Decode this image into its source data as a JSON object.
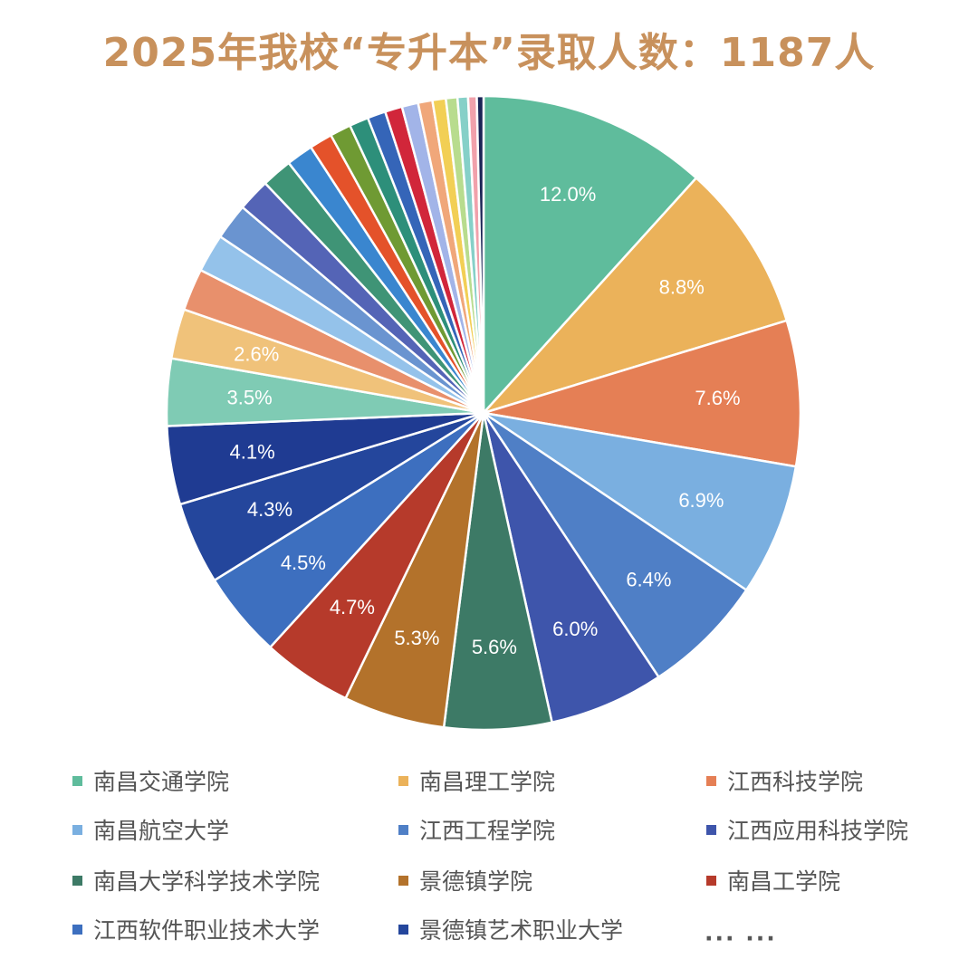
{
  "chart_data": {
    "type": "pie",
    "title": "2025年我校“专升本”录取人数：1187人",
    "total": 1187,
    "named_slices": [
      {
        "name": "南昌交通学院",
        "value": 12.0,
        "label": "12.0%",
        "color": "#5fbc9c"
      },
      {
        "name": "南昌理工学院",
        "value": 8.8,
        "label": "8.8%",
        "color": "#ebb25a"
      },
      {
        "name": "江西科技学院",
        "value": 7.6,
        "label": "7.6%",
        "color": "#e57f55"
      },
      {
        "name": "南昌航空大学",
        "value": 6.9,
        "label": "6.9%",
        "color": "#7aafe0"
      },
      {
        "name": "江西工程学院",
        "value": 6.4,
        "label": "6.4%",
        "color": "#4f7fc6"
      },
      {
        "name": "江西应用科技学院",
        "value": 6.0,
        "label": "6.0%",
        "color": "#3e55ab"
      },
      {
        "name": "南昌大学科学技术学院",
        "value": 5.6,
        "label": "5.6%",
        "color": "#3d7a66"
      },
      {
        "name": "景德镇学院",
        "value": 5.3,
        "label": "5.3%",
        "color": "#b3722b"
      },
      {
        "name": "南昌工学院",
        "value": 4.7,
        "label": "4.7%",
        "color": "#b63a2b"
      },
      {
        "name": "江西软件职业技术大学",
        "value": 4.5,
        "label": "4.5%",
        "color": "#3d6fbf"
      },
      {
        "name": "景德镇艺术职业大学",
        "value": 4.3,
        "label": "4.3%",
        "color": "#24469c"
      }
    ],
    "unnamed_slices": [
      {
        "value": 4.1,
        "label": "4.1%",
        "color": "#1f3b92"
      },
      {
        "value": 3.5,
        "label": "3.5%",
        "color": "#7fcbb4"
      },
      {
        "value": 2.6,
        "label": "2.6%",
        "color": "#f0c27a"
      },
      {
        "value": 2.2,
        "label": "",
        "color": "#e8906c"
      },
      {
        "value": 2.0,
        "label": "",
        "color": "#94c2ea"
      },
      {
        "value": 1.9,
        "label": "",
        "color": "#6a94d0"
      },
      {
        "value": 1.7,
        "label": "",
        "color": "#5464b6"
      },
      {
        "value": 1.6,
        "label": "",
        "color": "#3f9476"
      },
      {
        "value": 1.4,
        "label": "",
        "color": "#3a86cf"
      },
      {
        "value": 1.2,
        "label": "",
        "color": "#e4522a"
      },
      {
        "value": 1.1,
        "label": "",
        "color": "#6f9a33"
      },
      {
        "value": 1.0,
        "label": "",
        "color": "#2d8f7a"
      },
      {
        "value": 0.95,
        "label": "",
        "color": "#3565b8"
      },
      {
        "value": 0.9,
        "label": "",
        "color": "#d1263a"
      },
      {
        "value": 0.85,
        "label": "",
        "color": "#a2b4e8"
      },
      {
        "value": 0.75,
        "label": "",
        "color": "#f0a77a"
      },
      {
        "value": 0.7,
        "label": "",
        "color": "#f2cf55"
      },
      {
        "value": 0.6,
        "label": "",
        "color": "#b8dc8e"
      },
      {
        "value": 0.55,
        "label": "",
        "color": "#86d0c8"
      },
      {
        "value": 0.45,
        "label": "",
        "color": "#f1a1ab"
      },
      {
        "value": 0.35,
        "label": "",
        "color": "#1a2455"
      }
    ],
    "legend_more": "··· ···"
  }
}
